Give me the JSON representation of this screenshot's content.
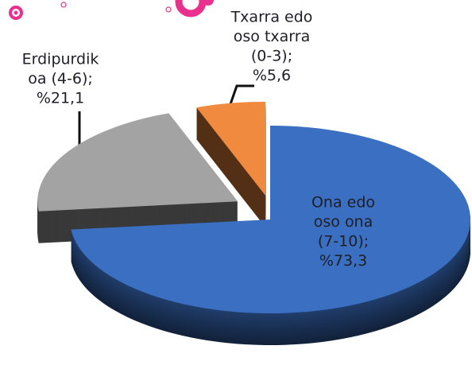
{
  "chart_data": {
    "type": "pie",
    "categories": [
      [
        "Ona edo",
        "oso ona",
        "(7-10);"
      ],
      [
        "Erdipurdik",
        "oa (4-6);"
      ],
      [
        "Txarra edo",
        "oso txarra",
        "(0-3);"
      ]
    ],
    "values": [
      73.3,
      21.1,
      5.6
    ],
    "value_labels": [
      "%73,3",
      "%21,1",
      "%5,6"
    ],
    "colors": [
      "#3b6fc1",
      "#a3a3a3",
      "#f08a3e"
    ]
  }
}
